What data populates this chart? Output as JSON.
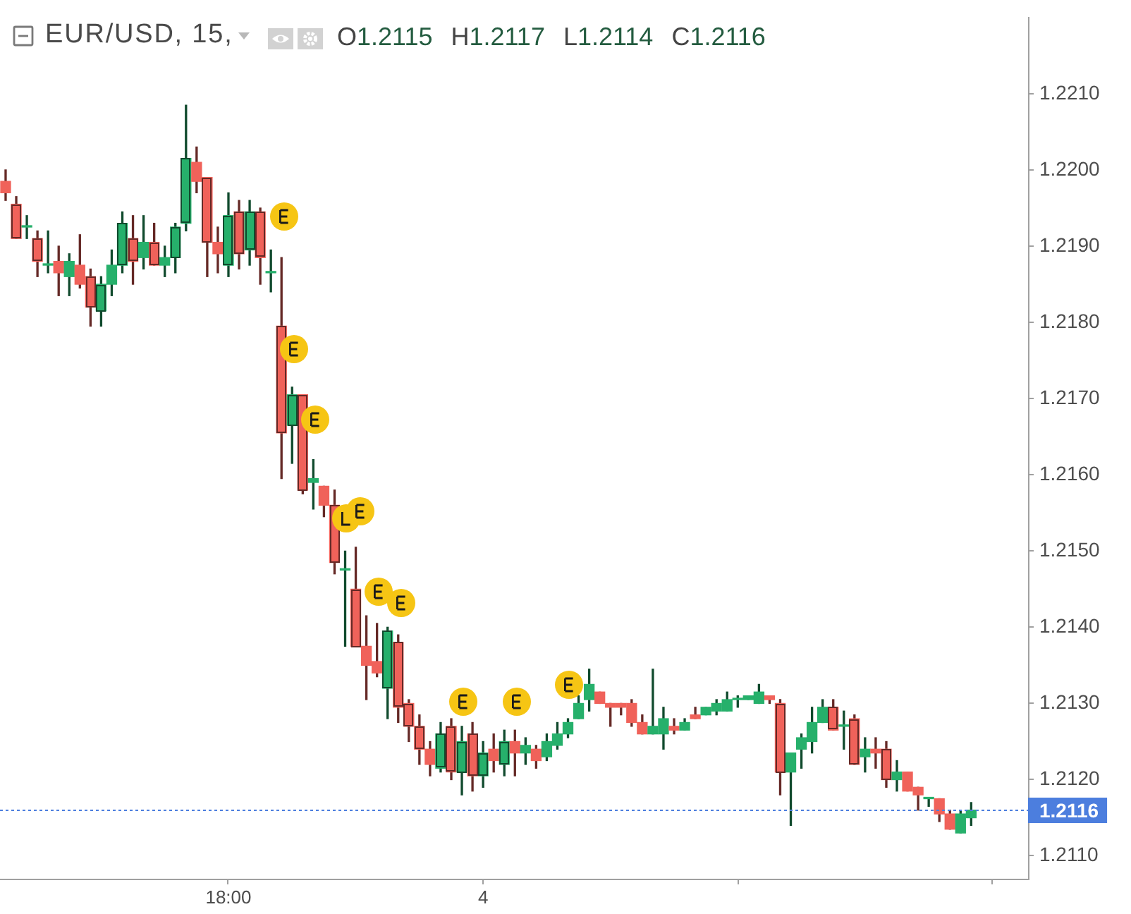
{
  "chart_data": {
    "type": "candlestick",
    "title": "EUR/USD, 15,",
    "subtitle": "O1.2115 H1.2117 L1.2114 C1.2116",
    "categories": [
      null,
      null,
      null,
      null,
      null,
      null,
      null,
      null,
      null,
      null,
      null,
      null,
      null,
      null,
      null,
      null,
      null,
      null,
      null,
      null,
      null,
      "18:00",
      null,
      null,
      null,
      null,
      null,
      null,
      null,
      null,
      null,
      null,
      null,
      null,
      null,
      null,
      null,
      null,
      null,
      null,
      null,
      null,
      null,
      null,
      null,
      "4",
      null,
      null,
      null,
      null,
      null,
      null,
      null,
      null,
      null,
      null,
      null,
      null,
      null,
      null,
      null,
      null,
      null,
      null,
      null,
      null,
      null,
      null,
      null,
      null,
      null,
      null,
      null,
      null,
      null,
      null,
      null,
      null,
      null,
      null,
      null,
      null,
      null,
      null,
      null,
      null,
      null,
      null,
      null,
      null,
      null,
      null
    ],
    "ohlc": [
      [
        1.21985,
        1.22,
        1.2196,
        1.2197
      ],
      [
        1.21955,
        1.21965,
        1.2191,
        1.2191
      ],
      [
        1.21925,
        1.2194,
        1.2191,
        1.21925
      ],
      [
        1.2191,
        1.2192,
        1.2186,
        1.2188
      ],
      [
        1.21875,
        1.2192,
        1.21865,
        1.21875
      ],
      [
        1.2188,
        1.219,
        1.21835,
        1.21865
      ],
      [
        1.2186,
        1.2189,
        1.21835,
        1.2188
      ],
      [
        1.21875,
        1.21915,
        1.21845,
        1.2185
      ],
      [
        1.2186,
        1.2187,
        1.21795,
        1.2182
      ],
      [
        1.21815,
        1.2186,
        1.21795,
        1.2185
      ],
      [
        1.2185,
        1.21895,
        1.21835,
        1.21875
      ],
      [
        1.21875,
        1.21945,
        1.21865,
        1.2193
      ],
      [
        1.2191,
        1.2194,
        1.2185,
        1.2188
      ],
      [
        1.21885,
        1.2194,
        1.2187,
        1.21905
      ],
      [
        1.21905,
        1.2193,
        1.21875,
        1.21875
      ],
      [
        1.21875,
        1.219,
        1.2186,
        1.21885
      ],
      [
        1.21885,
        1.2193,
        1.21865,
        1.21925
      ],
      [
        1.2193,
        1.22085,
        1.2192,
        1.22015
      ],
      [
        1.2201,
        1.2203,
        1.2197,
        1.21985
      ],
      [
        1.2199,
        1.2199,
        1.2186,
        1.21905
      ],
      [
        1.21905,
        1.21925,
        1.21865,
        1.2189
      ],
      [
        1.21875,
        1.2197,
        1.2186,
        1.2194
      ],
      [
        1.21945,
        1.2196,
        1.2187,
        1.2189
      ],
      [
        1.21895,
        1.2196,
        1.21875,
        1.21945
      ],
      [
        1.21945,
        1.2195,
        1.2185,
        1.21885
      ],
      [
        1.21865,
        1.21895,
        1.2184,
        1.21865
      ],
      [
        1.21795,
        1.21885,
        1.21595,
        1.21655
      ],
      [
        1.21665,
        1.21715,
        1.21615,
        1.21705
      ],
      [
        1.21705,
        1.21705,
        1.21575,
        1.2158
      ],
      [
        1.2159,
        1.2162,
        1.21555,
        1.21595
      ],
      [
        1.21585,
        1.21585,
        1.21545,
        1.2156
      ],
      [
        1.2156,
        1.2158,
        1.2147,
        1.21485
      ],
      [
        1.21475,
        1.215,
        1.21375,
        1.21475
      ],
      [
        1.2145,
        1.21505,
        1.21375,
        1.21375
      ],
      [
        1.21375,
        1.21415,
        1.21305,
        1.2135
      ],
      [
        1.21355,
        1.21405,
        1.21335,
        1.2134
      ],
      [
        1.2132,
        1.214,
        1.2128,
        1.21395
      ],
      [
        1.2138,
        1.2139,
        1.21275,
        1.21295
      ],
      [
        1.213,
        1.21305,
        1.2125,
        1.2127
      ],
      [
        1.2127,
        1.21285,
        1.2122,
        1.2124
      ],
      [
        1.2124,
        1.2125,
        1.21205,
        1.2122
      ],
      [
        1.21215,
        1.21275,
        1.2121,
        1.2126
      ],
      [
        1.2127,
        1.2128,
        1.212,
        1.2121
      ],
      [
        1.2121,
        1.2127,
        1.2118,
        1.2125
      ],
      [
        1.2126,
        1.21275,
        1.21185,
        1.21205
      ],
      [
        1.21205,
        1.2125,
        1.2119,
        1.21235
      ],
      [
        1.2124,
        1.2126,
        1.2121,
        1.21225
      ],
      [
        1.2122,
        1.21265,
        1.21205,
        1.2125
      ],
      [
        1.2125,
        1.21265,
        1.21205,
        1.21235
      ],
      [
        1.21235,
        1.21255,
        1.2122,
        1.21245
      ],
      [
        1.2124,
        1.21245,
        1.21215,
        1.21225
      ],
      [
        1.2123,
        1.2126,
        1.21225,
        1.2125
      ],
      [
        1.21245,
        1.21275,
        1.2124,
        1.2126
      ],
      [
        1.2126,
        1.2128,
        1.21255,
        1.21275
      ],
      [
        1.2128,
        1.2131,
        1.2128,
        1.213
      ],
      [
        1.21305,
        1.21345,
        1.2129,
        1.21325
      ],
      [
        1.21315,
        1.21315,
        1.213,
        1.213
      ],
      [
        1.213,
        1.213,
        1.2127,
        1.21295
      ],
      [
        1.213,
        1.213,
        1.21285,
        1.21295
      ],
      [
        1.213,
        1.21305,
        1.2127,
        1.21275
      ],
      [
        1.21275,
        1.21285,
        1.2126,
        1.2126
      ],
      [
        1.2126,
        1.21345,
        1.2126,
        1.2127
      ],
      [
        1.2126,
        1.21295,
        1.2124,
        1.2128
      ],
      [
        1.2127,
        1.2128,
        1.2126,
        1.21265
      ],
      [
        1.21265,
        1.2128,
        1.21265,
        1.21275
      ],
      [
        1.21285,
        1.21295,
        1.2128,
        1.2128
      ],
      [
        1.21285,
        1.21295,
        1.21285,
        1.21295
      ],
      [
        1.2129,
        1.21305,
        1.21285,
        1.213
      ],
      [
        1.2129,
        1.21315,
        1.2129,
        1.21305
      ],
      [
        1.21305,
        1.2131,
        1.21295,
        1.21305
      ],
      [
        1.21305,
        1.2131,
        1.21305,
        1.2131
      ],
      [
        1.213,
        1.21325,
        1.213,
        1.21315
      ],
      [
        1.2131,
        1.2131,
        1.213,
        1.21305
      ],
      [
        1.213,
        1.21305,
        1.2118,
        1.2121
      ],
      [
        1.2121,
        1.21235,
        1.2114,
        1.21235
      ],
      [
        1.2124,
        1.2126,
        1.21215,
        1.21255
      ],
      [
        1.2125,
        1.21295,
        1.21235,
        1.21275
      ],
      [
        1.21275,
        1.21305,
        1.21275,
        1.21295
      ],
      [
        1.21295,
        1.21305,
        1.21265,
        1.21265
      ],
      [
        1.2127,
        1.2129,
        1.2124,
        1.2127
      ],
      [
        1.2128,
        1.21285,
        1.2122,
        1.2122
      ],
      [
        1.2123,
        1.21255,
        1.2121,
        1.2124
      ],
      [
        1.2124,
        1.21255,
        1.21215,
        1.21235
      ],
      [
        1.2124,
        1.2125,
        1.2119,
        1.212
      ],
      [
        1.212,
        1.21225,
        1.21185,
        1.2121
      ],
      [
        1.2121,
        1.2121,
        1.21185,
        1.21185
      ],
      [
        1.2119,
        1.2119,
        1.2116,
        1.2118
      ],
      [
        1.21175,
        1.21175,
        1.21165,
        1.21175
      ],
      [
        1.21175,
        1.21175,
        1.21145,
        1.21155
      ],
      [
        1.21155,
        1.2116,
        1.21135,
        1.21135
      ],
      [
        1.2113,
        1.2116,
        1.2113,
        1.21155
      ],
      [
        1.2115,
        1.2117,
        1.2114,
        1.2116
      ]
    ],
    "colors": [
      "#f0625a",
      "#f0625a",
      "#26b06b",
      "#f0625a",
      "#26b06b",
      "#f0625a",
      "#26b06b",
      "#f0625a",
      "#f0625a",
      "#26b06b",
      "#26b06b",
      "#26b06b",
      "#f0625a",
      "#26b06b",
      "#f0625a",
      "#26b06b",
      "#26b06b",
      "#26b06b",
      "#f0625a",
      "#f0625a",
      "#f0625a",
      "#26b06b",
      "#f0625a",
      "#26b06b",
      "#f0625a",
      "#26b06b",
      "#f0625a",
      "#26b06b",
      "#f0625a",
      "#26b06b",
      "#f0625a",
      "#f0625a",
      "#26b06b",
      "#f0625a",
      "#f0625a",
      "#f0625a",
      "#26b06b",
      "#f0625a",
      "#f0625a",
      "#f0625a",
      "#f0625a",
      "#26b06b",
      "#f0625a",
      "#26b06b",
      "#f0625a",
      "#26b06b",
      "#f0625a",
      "#26b06b",
      "#f0625a",
      "#26b06b",
      "#f0625a",
      "#26b06b",
      "#26b06b",
      "#26b06b",
      "#26b06b",
      "#26b06b",
      "#f0625a",
      "#f0625a",
      "#f0625a",
      "#f0625a",
      "#f0625a",
      "#26b06b",
      "#26b06b",
      "#f0625a",
      "#26b06b",
      "#f0625a",
      "#26b06b",
      "#26b06b",
      "#26b06b",
      "#26b06b",
      "#26b06b",
      "#26b06b",
      "#f0625a",
      "#f0625a",
      "#26b06b",
      "#26b06b",
      "#26b06b",
      "#26b06b",
      "#f0625a",
      "#26b06b",
      "#f0625a",
      "#26b06b",
      "#f0625a",
      "#f0625a",
      "#26b06b",
      "#f0625a",
      "#f0625a",
      "#26b06b",
      "#f0625a",
      "#f0625a",
      "#26b06b",
      "#26b06b"
    ],
    "ylim": [
      1.2107,
      1.222
    ],
    "yticks": [
      {
        "value": 1.211,
        "label": "1.2110"
      },
      {
        "value": 1.212,
        "label": "1.2120"
      },
      {
        "value": 1.213,
        "label": "1.2130"
      },
      {
        "value": 1.214,
        "label": "1.2140"
      },
      {
        "value": 1.215,
        "label": "1.2150"
      },
      {
        "value": 1.216,
        "label": "1.2160"
      },
      {
        "value": 1.217,
        "label": "1.2170"
      },
      {
        "value": 1.218,
        "label": "1.2180"
      },
      {
        "value": 1.219,
        "label": "1.2190"
      },
      {
        "value": 1.22,
        "label": "1.2200"
      },
      {
        "value": 1.221,
        "label": "1.2210"
      }
    ],
    "ref_lines": [
      {
        "axis": "y",
        "value": 1.2116,
        "label": "1.2116",
        "color": "#4c7ede",
        "line_style": "dotted"
      }
    ]
  }
}
